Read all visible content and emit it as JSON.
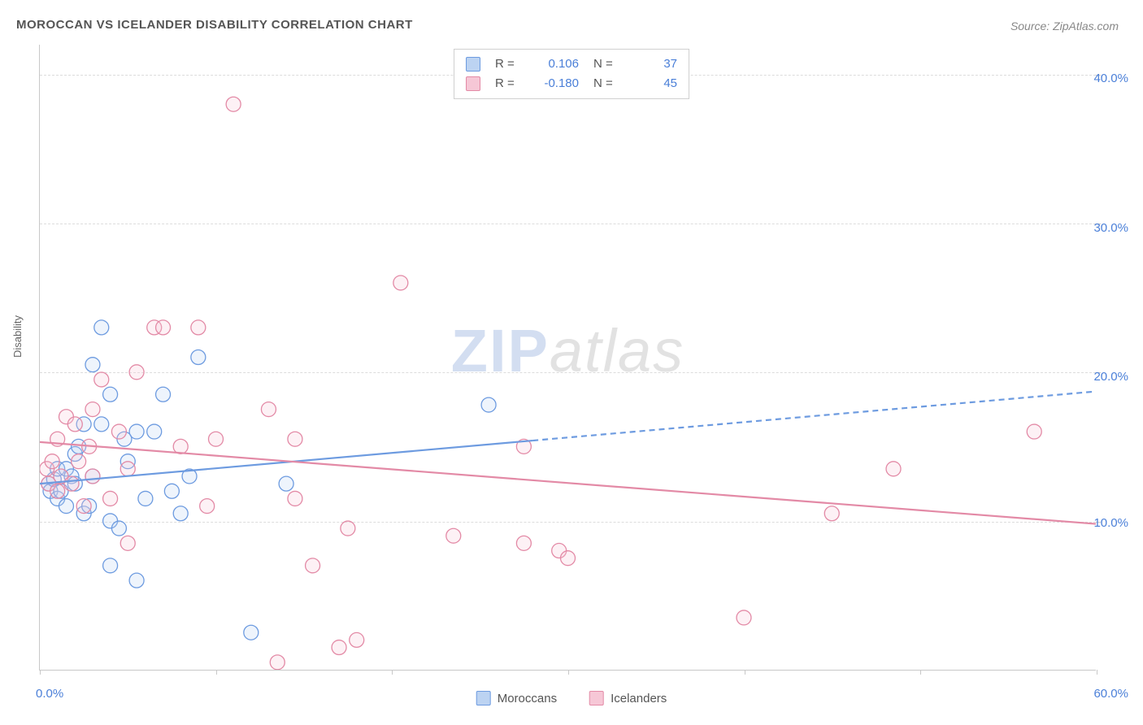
{
  "title": "MOROCCAN VS ICELANDER DISABILITY CORRELATION CHART",
  "source_label": "Source: ZipAtlas.com",
  "y_axis_title": "Disability",
  "watermark_zip": "ZIP",
  "watermark_atlas": "atlas",
  "chart": {
    "type": "scatter",
    "background_color": "#ffffff",
    "grid_color": "#dcdcdc",
    "axis_color": "#c8c8c8",
    "tick_label_color": "#4a7fd8",
    "label_fontsize": 13,
    "tick_fontsize": 15,
    "xlim": [
      0,
      60
    ],
    "ylim": [
      0,
      42
    ],
    "y_gridlines": [
      10,
      20,
      30,
      40
    ],
    "y_tick_labels": [
      "10.0%",
      "20.0%",
      "30.0%",
      "40.0%"
    ],
    "x_ticks": [
      0,
      10,
      20,
      30,
      40,
      50,
      60
    ],
    "x_tick_labels": {
      "0": "0.0%",
      "60": "60.0%"
    },
    "marker_radius": 9,
    "marker_stroke_width": 1.3,
    "marker_fill_opacity": 0.25,
    "series": [
      {
        "name": "Moroccans",
        "color": "#6d9be0",
        "fill": "#bcd3f2",
        "R": "0.106",
        "N": "37",
        "points": [
          [
            0.5,
            12.5
          ],
          [
            0.6,
            12.0
          ],
          [
            0.8,
            12.8
          ],
          [
            1.0,
            11.5
          ],
          [
            1.0,
            13.5
          ],
          [
            1.2,
            12.0
          ],
          [
            1.5,
            13.5
          ],
          [
            1.5,
            11.0
          ],
          [
            1.8,
            13.0
          ],
          [
            2.0,
            12.5
          ],
          [
            2.0,
            14.5
          ],
          [
            2.2,
            15.0
          ],
          [
            2.5,
            10.5
          ],
          [
            2.5,
            16.5
          ],
          [
            2.8,
            11.0
          ],
          [
            3.0,
            13.0
          ],
          [
            3.0,
            20.5
          ],
          [
            3.5,
            16.5
          ],
          [
            3.5,
            23.0
          ],
          [
            4.0,
            18.5
          ],
          [
            4.0,
            10.0
          ],
          [
            4.0,
            7.0
          ],
          [
            4.5,
            9.5
          ],
          [
            5.0,
            14.0
          ],
          [
            5.5,
            6.0
          ],
          [
            5.5,
            16.0
          ],
          [
            6.0,
            11.5
          ],
          [
            6.5,
            16.0
          ],
          [
            7.0,
            18.5
          ],
          [
            7.5,
            12.0
          ],
          [
            8.0,
            10.5
          ],
          [
            8.5,
            13.0
          ],
          [
            12.0,
            2.5
          ],
          [
            14.0,
            12.5
          ],
          [
            25.5,
            17.8
          ],
          [
            9.0,
            21.0
          ],
          [
            4.8,
            15.5
          ]
        ],
        "trend": {
          "solid": {
            "x1": 0,
            "y1": 12.5,
            "x2": 28,
            "y2": 15.4
          },
          "dashed": {
            "x1": 28,
            "y1": 15.4,
            "x2": 60,
            "y2": 18.7
          },
          "stroke_width": 2.2,
          "dash_pattern": "7,5"
        }
      },
      {
        "name": "Icelanders",
        "color": "#e38aa6",
        "fill": "#f6c7d6",
        "R": "-0.180",
        "N": "45",
        "points": [
          [
            0.4,
            13.5
          ],
          [
            0.5,
            12.5
          ],
          [
            0.7,
            14.0
          ],
          [
            1.0,
            15.5
          ],
          [
            1.0,
            12.0
          ],
          [
            1.2,
            13.0
          ],
          [
            1.5,
            17.0
          ],
          [
            1.8,
            12.5
          ],
          [
            2.0,
            16.5
          ],
          [
            2.2,
            14.0
          ],
          [
            2.5,
            11.0
          ],
          [
            2.8,
            15.0
          ],
          [
            3.0,
            13.0
          ],
          [
            3.0,
            17.5
          ],
          [
            3.5,
            19.5
          ],
          [
            4.0,
            11.5
          ],
          [
            4.5,
            16.0
          ],
          [
            5.0,
            13.5
          ],
          [
            5.5,
            20.0
          ],
          [
            6.5,
            23.0
          ],
          [
            7.0,
            23.0
          ],
          [
            8.0,
            15.0
          ],
          [
            9.0,
            23.0
          ],
          [
            9.5,
            11.0
          ],
          [
            10.0,
            15.5
          ],
          [
            11.0,
            38.0
          ],
          [
            13.0,
            17.5
          ],
          [
            14.5,
            15.5
          ],
          [
            14.5,
            11.5
          ],
          [
            15.5,
            7.0
          ],
          [
            17.0,
            1.5
          ],
          [
            17.5,
            9.5
          ],
          [
            18.0,
            2.0
          ],
          [
            20.5,
            26.0
          ],
          [
            23.5,
            9.0
          ],
          [
            27.5,
            8.5
          ],
          [
            27.5,
            15.0
          ],
          [
            29.5,
            8.0
          ],
          [
            30.0,
            7.5
          ],
          [
            40.0,
            3.5
          ],
          [
            45.0,
            10.5
          ],
          [
            48.5,
            13.5
          ],
          [
            56.5,
            16.0
          ],
          [
            13.5,
            0.5
          ],
          [
            5.0,
            8.5
          ]
        ],
        "trend": {
          "solid": {
            "x1": 0,
            "y1": 15.3,
            "x2": 60,
            "y2": 9.8
          },
          "stroke_width": 2.2
        }
      }
    ],
    "legend_top": {
      "r_label": "R  =",
      "n_label": "N  ="
    },
    "legend_bottom": [
      {
        "label": "Moroccans",
        "swatch_fill": "#bcd3f2",
        "swatch_stroke": "#6d9be0"
      },
      {
        "label": "Icelanders",
        "swatch_fill": "#f6c7d6",
        "swatch_stroke": "#e38aa6"
      }
    ]
  }
}
